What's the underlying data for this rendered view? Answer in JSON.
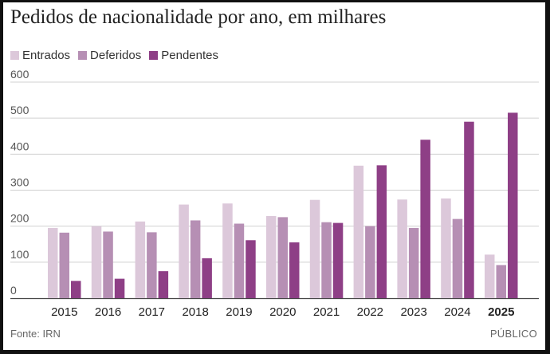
{
  "chart_data": {
    "type": "bar",
    "title": "Pedidos de nacionalidade por ano, em milhares",
    "categories": [
      "2015",
      "2016",
      "2017",
      "2018",
      "2019",
      "2020",
      "2021",
      "2022",
      "2023",
      "2024",
      "2025"
    ],
    "highlight_category": "2025",
    "ylim": [
      0,
      600
    ],
    "yticks": [
      0,
      100,
      200,
      300,
      400,
      500,
      600
    ],
    "grid": true,
    "legend_position": "top-left",
    "series": [
      {
        "name": "Entrados",
        "color": "#dcc8da",
        "values": [
          195,
          200,
          213,
          260,
          263,
          228,
          273,
          368,
          274,
          277,
          121
        ]
      },
      {
        "name": "Deferidos",
        "color": "#b68fb4",
        "values": [
          182,
          185,
          183,
          216,
          207,
          225,
          211,
          200,
          195,
          220,
          92
        ]
      },
      {
        "name": "Pendentes",
        "color": "#8e3f86",
        "values": [
          48,
          54,
          75,
          111,
          161,
          155,
          209,
          369,
          440,
          490,
          515
        ]
      }
    ]
  },
  "footer": {
    "source": "Fonte: IRN",
    "brand": "PÚBLICO"
  }
}
